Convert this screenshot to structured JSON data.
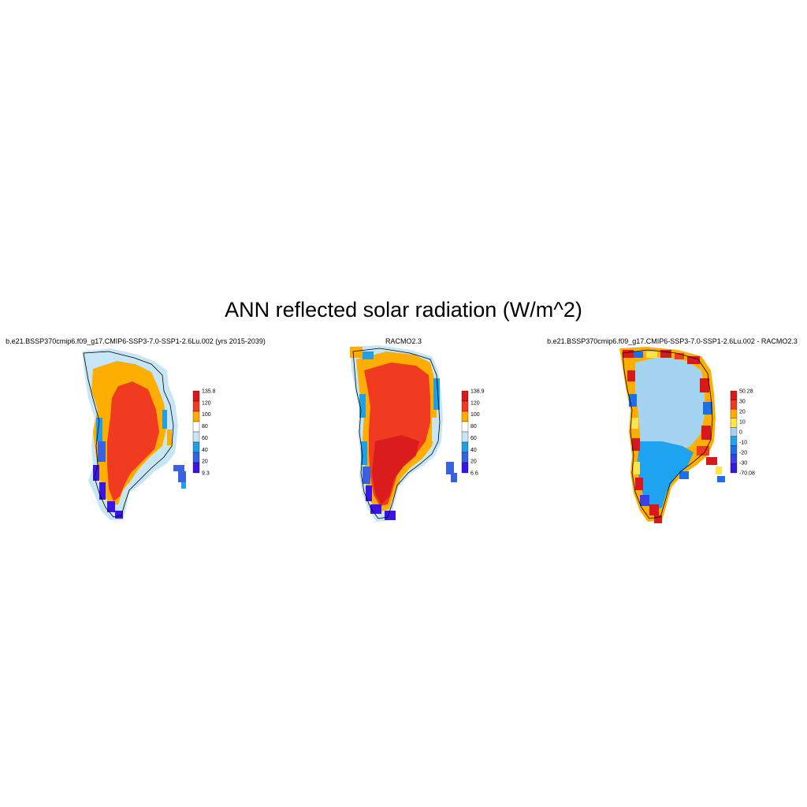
{
  "figure": {
    "title": "ANN reflected solar radiation (W/m^2)"
  },
  "panels": [
    {
      "title": "b.e21.BSSP370cmip6.f09_g17.CMIP6-SSP3-7.0-SSP1-2.6Lu.002 (yrs 2015-2039)",
      "colorbar": {
        "labels": [
          "135.8",
          "120",
          "100",
          "80",
          "60",
          "40",
          "20",
          "9.3"
        ],
        "colors": [
          "#d7191c",
          "#f03b20",
          "#fdae00",
          "#ffffff",
          "#c6e6f5",
          "#1e9fe6",
          "#3a62e0",
          "#3b14e8"
        ]
      }
    },
    {
      "title": "RACMO2.3",
      "colorbar": {
        "labels": [
          "138.9",
          "120",
          "100",
          "80",
          "60",
          "40",
          "20",
          "6.6"
        ],
        "colors": [
          "#d7191c",
          "#f03b20",
          "#fdae00",
          "#ffffff",
          "#c6e6f5",
          "#1e9fe6",
          "#3a62e0",
          "#3b14e8"
        ]
      }
    },
    {
      "title": "b.e21.BSSP370cmip6.f09_g17.CMIP6-SSP3-7.0-SSP1-2.6Lu.002 - RACMO2.3",
      "colorbar": {
        "labels": [
          "50.28",
          "30",
          "20",
          "10",
          "0",
          "-10",
          "-20",
          "-30",
          "-70.08"
        ],
        "colors": [
          "#d7191c",
          "#f03b20",
          "#fdae00",
          "#ffe54a",
          "#a3d3f0",
          "#1ea3f0",
          "#1e6fe6",
          "#3b3fe6",
          "#3b14e8"
        ]
      }
    }
  ]
}
